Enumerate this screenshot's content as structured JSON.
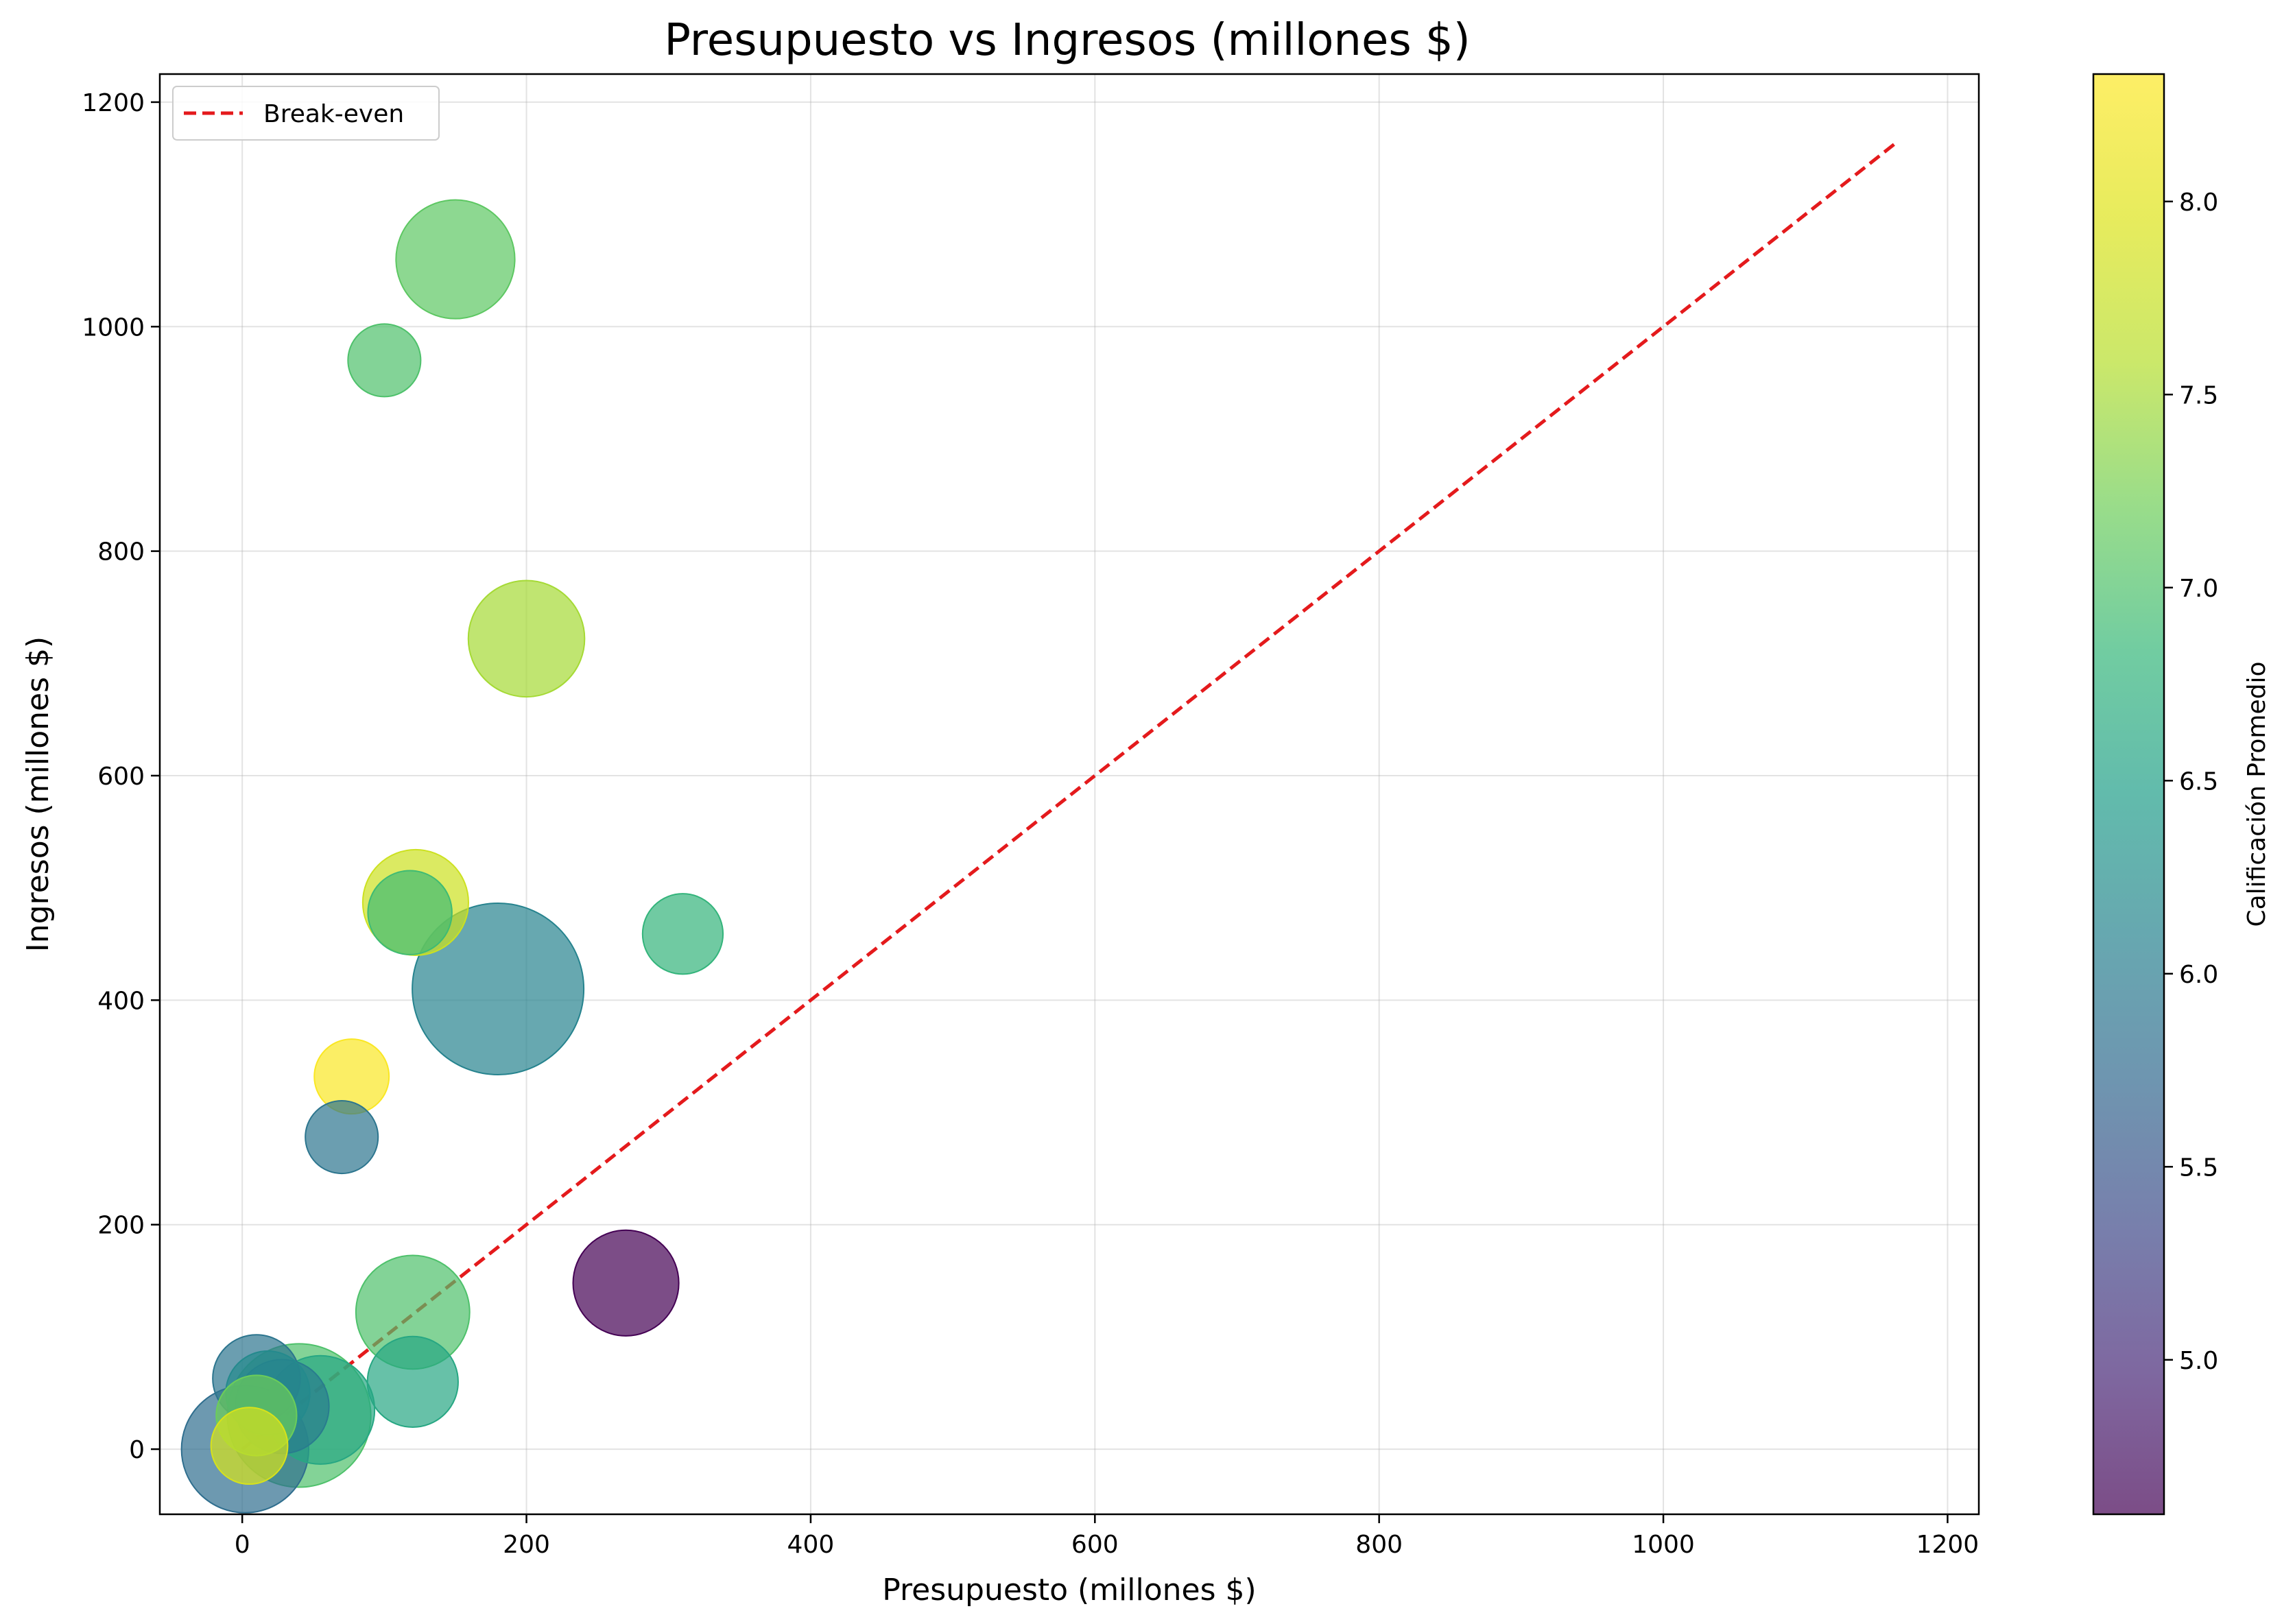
{
  "chart_data": {
    "type": "scatter",
    "title": "Presupuesto vs Ingresos (millones $)",
    "xlabel": "Presupuesto (millones $)",
    "ylabel": "Ingresos (millones $)",
    "xlim": [
      -58,
      1222
    ],
    "ylim": [
      -58,
      1225
    ],
    "xticks": [
      0,
      200,
      400,
      600,
      800,
      1000,
      1200
    ],
    "yticks": [
      0,
      200,
      400,
      600,
      800,
      1000,
      1200
    ],
    "grid": true,
    "legend": {
      "position": "top-left",
      "entries": [
        {
          "label": "Break-even",
          "style": "dashed",
          "color": "#e41a1c"
        }
      ]
    },
    "break_even_line": {
      "x": [
        0,
        1165
      ],
      "y": [
        0,
        1165
      ]
    },
    "colorbar": {
      "label": "Calificación Promedio",
      "range": [
        4.6,
        8.33
      ],
      "ticks": [
        5.0,
        5.5,
        6.0,
        6.5,
        7.0,
        7.5,
        8.0
      ],
      "colormap": "viridis"
    },
    "bubble_size_scale_max": 100,
    "points": [
      {
        "x": 180,
        "y": 410,
        "rating": 6.1,
        "size": 100
      },
      {
        "x": 40,
        "y": 30,
        "rating": 7.0,
        "size": 70
      },
      {
        "x": 2,
        "y": 0,
        "rating": 5.8,
        "size": 55
      },
      {
        "x": 150,
        "y": 1060,
        "rating": 7.1,
        "size": 48
      },
      {
        "x": 200,
        "y": 722,
        "rating": 7.5,
        "size": 46
      },
      {
        "x": 120,
        "y": 122,
        "rating": 7.0,
        "size": 44
      },
      {
        "x": 55,
        "y": 35,
        "rating": 6.6,
        "size": 40
      },
      {
        "x": 270,
        "y": 148,
        "rating": 4.6,
        "size": 38
      },
      {
        "x": 122,
        "y": 487,
        "rating": 7.8,
        "size": 38
      },
      {
        "x": 28,
        "y": 38,
        "rating": 6.0,
        "size": 30
      },
      {
        "x": 120,
        "y": 60,
        "rating": 6.6,
        "size": 28
      },
      {
        "x": 10,
        "y": 63,
        "rating": 5.9,
        "size": 26
      },
      {
        "x": 18,
        "y": 50,
        "rating": 6.2,
        "size": 24
      },
      {
        "x": 118,
        "y": 478,
        "rating": 6.9,
        "size": 24
      },
      {
        "x": 10,
        "y": 30,
        "rating": 7.2,
        "size": 22
      },
      {
        "x": 310,
        "y": 459,
        "rating": 6.8,
        "size": 22
      },
      {
        "x": 5,
        "y": 3,
        "rating": 7.9,
        "size": 20
      },
      {
        "x": 77,
        "y": 332,
        "rating": 8.3,
        "size": 19
      },
      {
        "x": 70,
        "y": 278,
        "rating": 5.9,
        "size": 18
      },
      {
        "x": 100,
        "y": 970,
        "rating": 7.0,
        "size": 18
      }
    ]
  }
}
